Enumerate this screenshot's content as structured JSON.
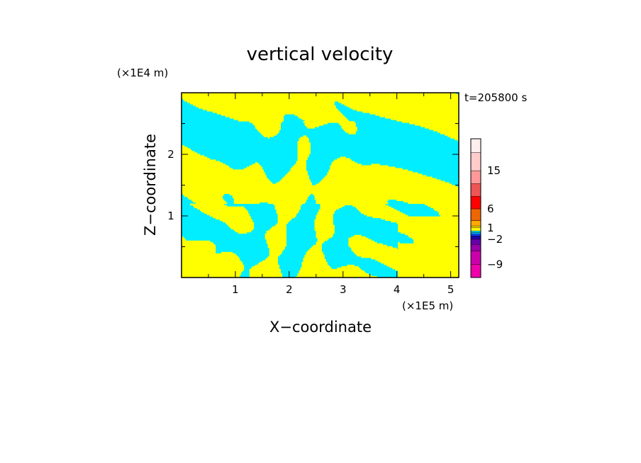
{
  "chart_data": {
    "type": "heatmap",
    "title": "vertical velocity",
    "xlabel": "X−coordinate",
    "ylabel": "Z−coordinate",
    "x_unit": "(×1E5 m)",
    "y_unit": "(×1E4 m)",
    "time_label": "t=205800 s",
    "xlim": [
      0,
      5.15
    ],
    "ylim": [
      0,
      3.0
    ],
    "x_ticks": [
      1,
      2,
      3,
      4,
      5
    ],
    "y_ticks": [
      1,
      2
    ],
    "field_colors": {
      "negative": "#00eeff",
      "positive": "#ffff00"
    },
    "colorbar": {
      "levels": [
        -12,
        -9,
        -6,
        -4,
        -2,
        -1,
        -0.5,
        0,
        0.5,
        1,
        2,
        4,
        6,
        9,
        12,
        15,
        20,
        30
      ],
      "colors": [
        "#ee00aa",
        "#cc00aa",
        "#9900aa",
        "#6600aa",
        "#2200aa",
        "#0044ff",
        "#00aaff",
        "#00eeff",
        "#ffff00",
        "#ffdd00",
        "#ffaa00",
        "#ee6600",
        "#ff0000",
        "#ee5555",
        "#ff9999",
        "#ffcccc",
        "#ffeeee"
      ],
      "tick_labels": [
        -9,
        -2,
        1,
        6,
        15
      ]
    }
  }
}
